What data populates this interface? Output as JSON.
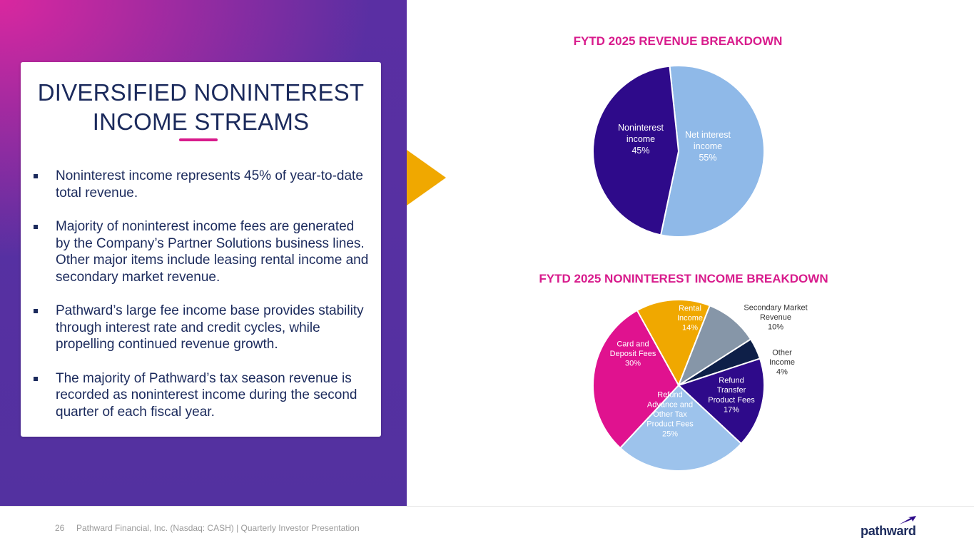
{
  "slide": {
    "title": "DIVERSIFIED NONINTEREST INCOME STREAMS",
    "bullets": [
      "Noninterest income represents 45% of year-to-date total revenue.",
      "Majority of noninterest income fees are generated by the Company’s Partner Solutions business lines. Other major items include leasing rental income and secondary market revenue.",
      "Pathward’s large fee income base provides stability through interest rate and credit cycles, while propelling continued revenue growth.",
      "The majority of Pathward’s tax season revenue is recorded as noninterest income during the second quarter of each fiscal year."
    ]
  },
  "footer": {
    "page_number": "26",
    "note": "Pathward Financial, Inc. (Nasdaq: CASH) | Quarterly Investor Presentation",
    "logo_text": "pathward"
  },
  "colors": {
    "magenta": "#d81b8c",
    "navy": "#1b2a5c",
    "purple": "#5331a0",
    "gold": "#f0a800"
  },
  "chart_data": [
    {
      "type": "pie",
      "title": "FYTD 2025 REVENUE BREAKDOWN",
      "slices": [
        {
          "label": "Net interest income",
          "value": 55,
          "display": "55%",
          "color": "#8fb9e8",
          "label_color": "#ffffff"
        },
        {
          "label": "Noninterest income",
          "value": 45,
          "display": "45%",
          "color": "#2e0a8a",
          "label_color": "#ffffff"
        }
      ]
    },
    {
      "type": "pie",
      "title": "FYTD 2025 NONINTEREST INCOME BREAKDOWN",
      "slices": [
        {
          "label": "Rental Income",
          "value": 14,
          "display": "14%",
          "color": "#f0a800",
          "label_color": "#ffffff"
        },
        {
          "label": "Secondary Market Revenue",
          "value": 10,
          "display": "10%",
          "color": "#8696a8",
          "label_color": "#333333"
        },
        {
          "label": "Other Income",
          "value": 4,
          "display": "4%",
          "color": "#0e1f48",
          "label_color": "#333333"
        },
        {
          "label": "Refund Transfer Product Fees",
          "value": 17,
          "display": "17%",
          "color": "#2e0a8a",
          "label_color": "#ffffff"
        },
        {
          "label": "Refund Advance and Other Tax Product Fees",
          "value": 25,
          "display": "25%",
          "color": "#9dc3ec",
          "label_color": "#ffffff"
        },
        {
          "label": "Card and Deposit Fees",
          "value": 30,
          "display": "30%",
          "color": "#e0128f",
          "label_color": "#ffffff"
        }
      ]
    }
  ]
}
